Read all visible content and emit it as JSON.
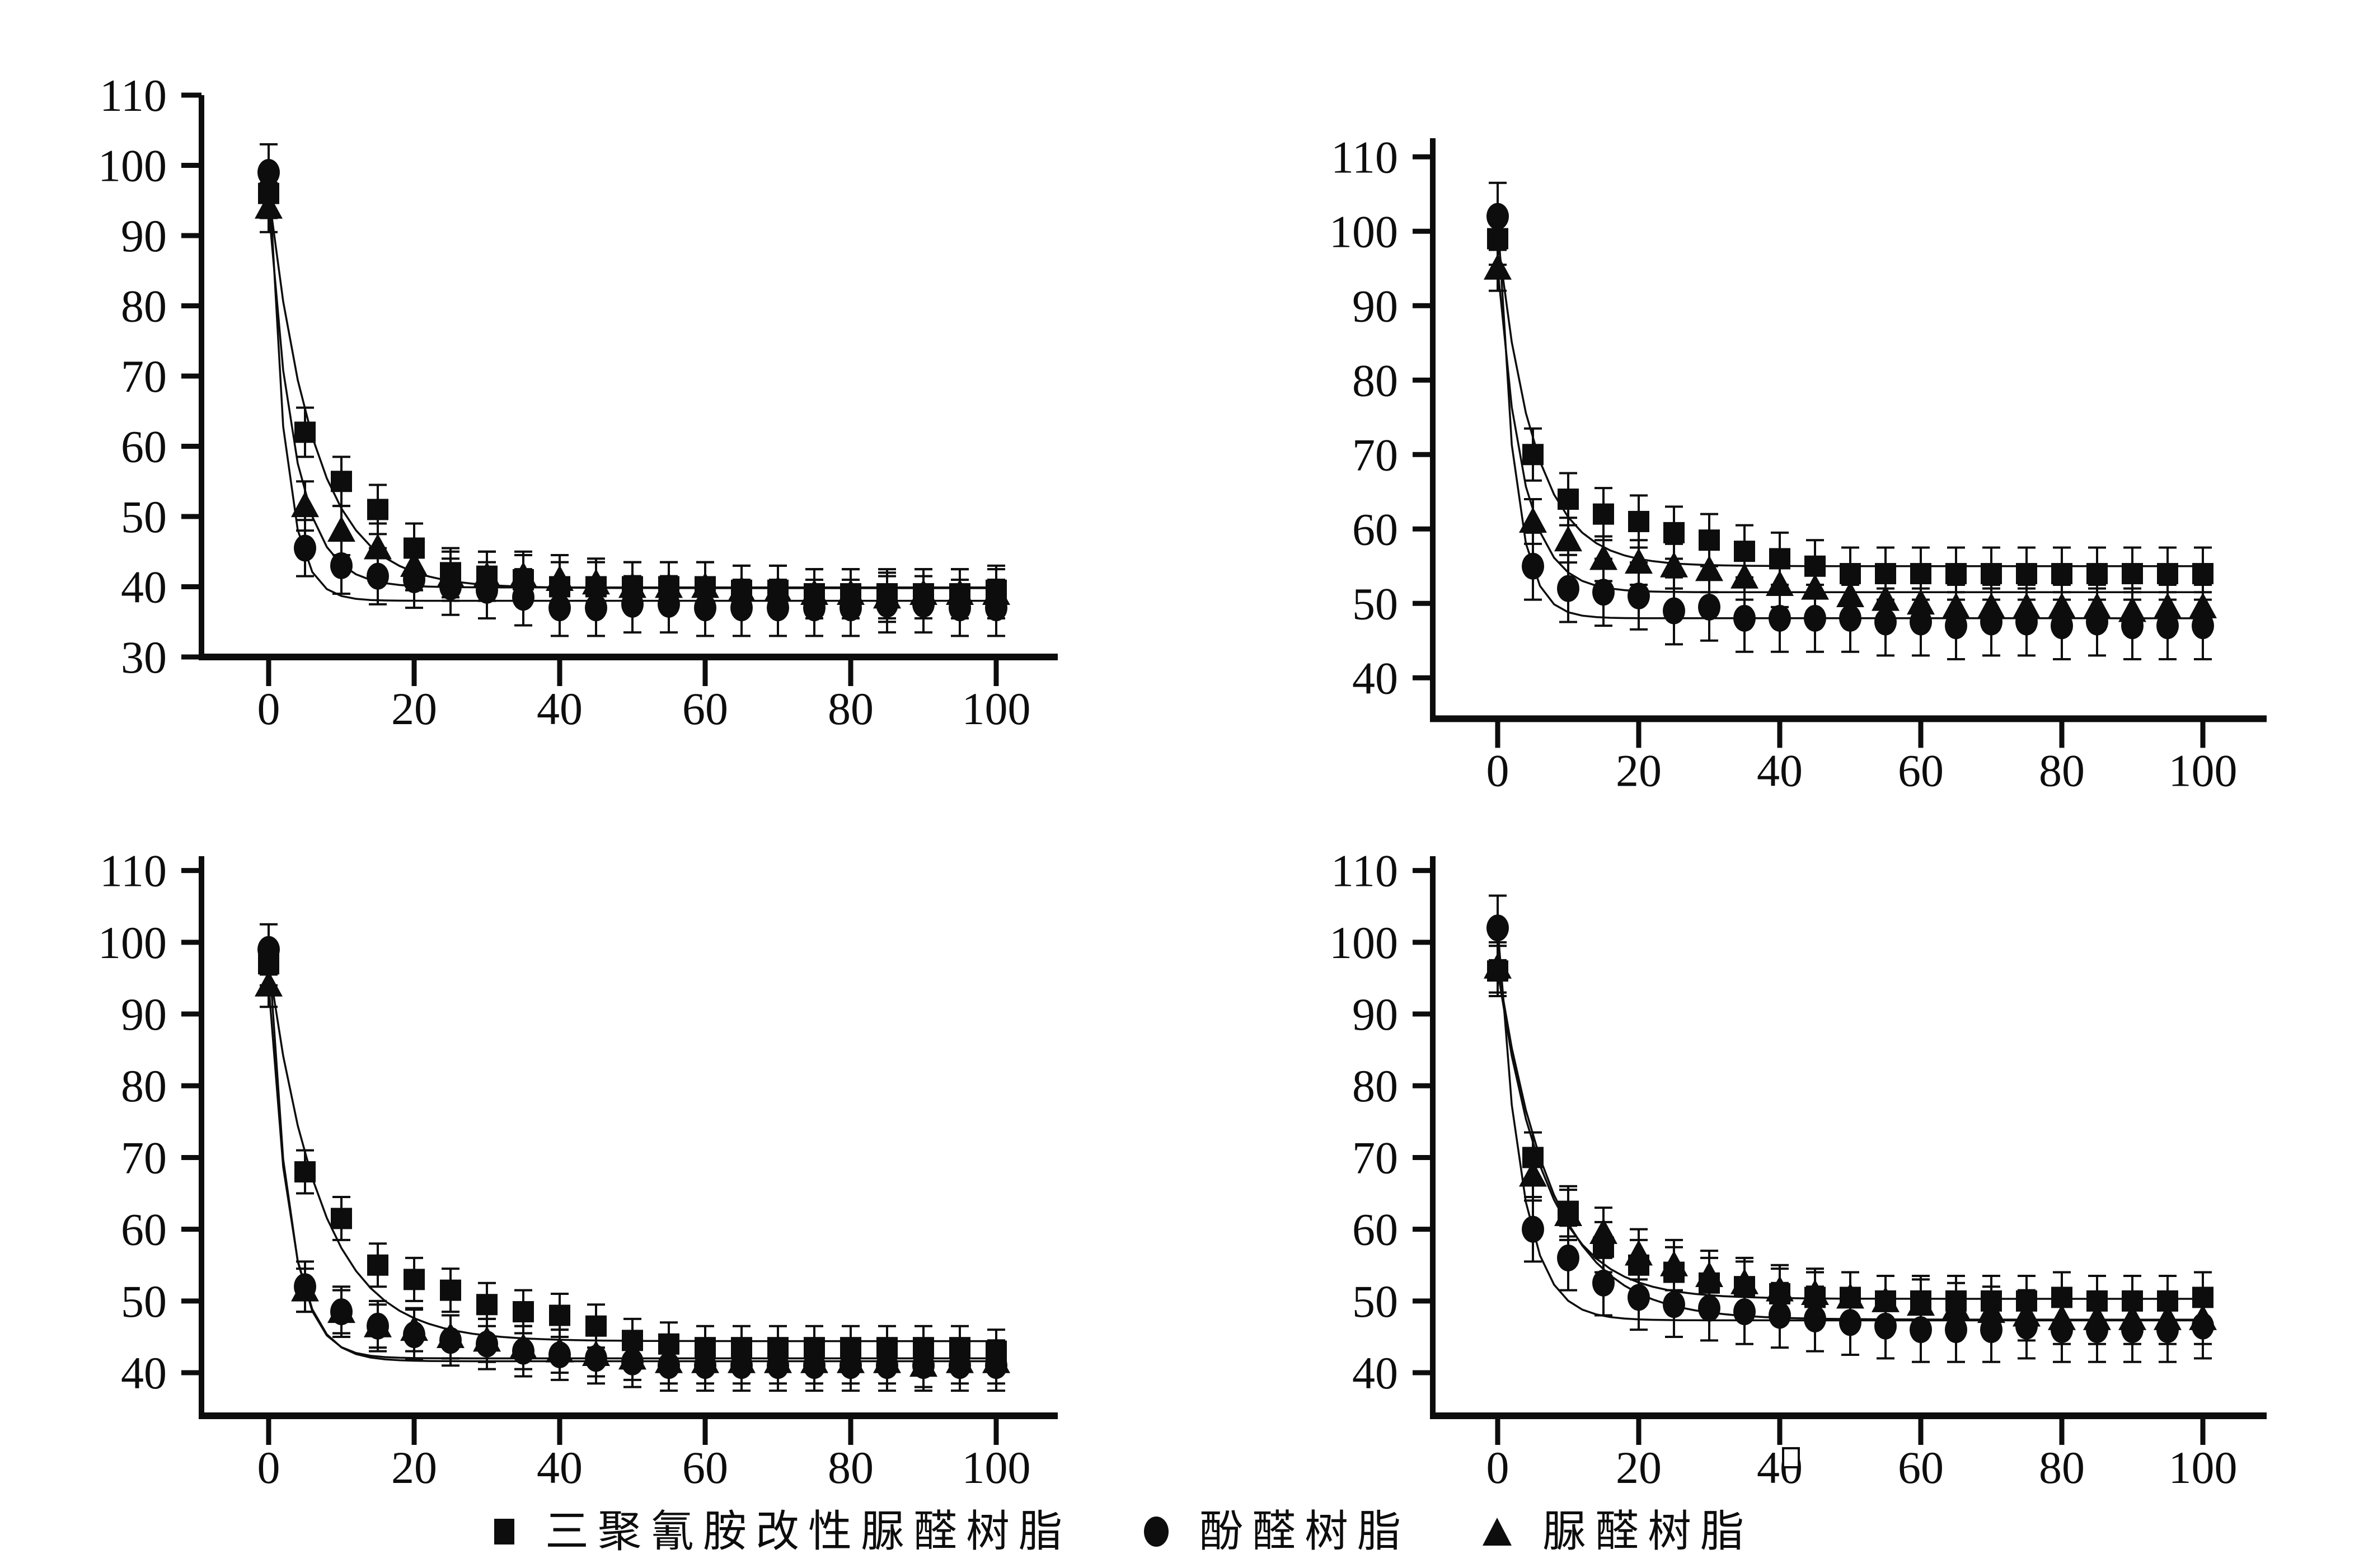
{
  "page": {
    "background": "#ffffff",
    "ink_color": "#0d0d0d"
  },
  "legend": {
    "items": [
      {
        "marker": "square",
        "icon": "square-marker-icon",
        "label": "三聚氰胺改性脲醛树脂"
      },
      {
        "marker": "circle",
        "icon": "circle-marker-icon",
        "label": "酚醛树脂"
      },
      {
        "marker": "triangle",
        "icon": "triangle-marker-icon",
        "label": "脲醛树脂"
      }
    ]
  },
  "chart_data": [
    {
      "id": "top-left",
      "type": "scatter",
      "title": "",
      "xlabel": "",
      "ylabel": "",
      "x": [
        0,
        5,
        10,
        15,
        20,
        25,
        30,
        35,
        40,
        45,
        50,
        55,
        60,
        65,
        70,
        75,
        80,
        85,
        90,
        95,
        100
      ],
      "xticks": [
        0,
        20,
        40,
        60,
        80,
        100
      ],
      "yticks": [
        30,
        40,
        50,
        60,
        70,
        80,
        90,
        100,
        110
      ],
      "ylim": [
        30,
        110
      ],
      "xlim": [
        0,
        100
      ],
      "grid": false,
      "series": [
        {
          "name": "三聚氰胺改性脲醛树脂",
          "marker": "square",
          "err": 3.5,
          "fit": {
            "y0": 96,
            "plateau": 39.8,
            "k": 0.16
          },
          "values": [
            96,
            62,
            55,
            51,
            45.5,
            42,
            41.5,
            41,
            40,
            40,
            40,
            40,
            40,
            39.5,
            39.5,
            39,
            39,
            39,
            39,
            39,
            39.5
          ]
        },
        {
          "name": "酚醛树脂",
          "marker": "circle",
          "err": 4,
          "fit": {
            "y0": 99,
            "plateau": 38,
            "k": 0.45
          },
          "values": [
            99,
            45.5,
            43,
            41.5,
            41,
            40,
            39.5,
            38.5,
            37,
            37,
            37.5,
            37.5,
            37,
            37,
            37,
            37,
            37,
            37.5,
            37.5,
            37,
            37
          ]
        },
        {
          "name": "脲醛树脂",
          "marker": "triangle",
          "err": 3.5,
          "fit": {
            "y0": 94,
            "plateau": 39.9,
            "k": 0.28
          },
          "values": [
            94,
            51.5,
            48,
            45.5,
            43,
            41.5,
            41.5,
            41.5,
            41,
            40.5,
            40,
            40,
            40,
            39.5,
            39.5,
            39,
            39,
            38.5,
            39,
            39,
            39
          ]
        }
      ]
    },
    {
      "id": "top-right",
      "type": "scatter",
      "title": "",
      "xlabel": "",
      "ylabel": "",
      "x": [
        0,
        5,
        10,
        15,
        20,
        25,
        30,
        35,
        40,
        45,
        50,
        55,
        60,
        65,
        70,
        75,
        80,
        85,
        90,
        95,
        100
      ],
      "xticks": [
        0,
        20,
        40,
        60,
        80,
        100
      ],
      "yticks": [
        40,
        50,
        60,
        70,
        80,
        90,
        100,
        110
      ],
      "ylim": [
        34.5,
        112.5
      ],
      "xlim": [
        0,
        100
      ],
      "grid": false,
      "series": [
        {
          "name": "三聚氰胺改性脲醛树脂",
          "marker": "square",
          "err": 3.5,
          "fit": {
            "y0": 99,
            "plateau": 55,
            "k": 0.19
          },
          "values": [
            99,
            70,
            64,
            62,
            61,
            59.5,
            58.5,
            57,
            56,
            55,
            54,
            54,
            54,
            54,
            54,
            54,
            54,
            54,
            54,
            54,
            54
          ]
        },
        {
          "name": "酚醛树脂",
          "marker": "circle",
          "err": 4.5,
          "fit": {
            "y0": 102,
            "plateau": 48,
            "k": 0.42
          },
          "values": [
            102,
            55,
            52,
            51.5,
            51,
            49,
            49.5,
            48,
            48,
            48,
            48,
            47.5,
            47.5,
            47,
            47.5,
            47.5,
            47,
            47.5,
            47,
            47,
            47
          ]
        },
        {
          "name": "脲醛树脂",
          "marker": "triangle",
          "err": 3,
          "fit": {
            "y0": 95,
            "plateau": 51.5,
            "k": 0.28
          },
          "values": [
            95,
            61,
            58.5,
            56,
            55.5,
            55,
            54.5,
            53.5,
            52.5,
            52,
            51,
            50.5,
            50,
            49.5,
            49.5,
            49.5,
            49.5,
            49.5,
            49,
            49.5,
            49.5
          ]
        }
      ]
    },
    {
      "id": "bottom-left",
      "type": "scatter",
      "title": "",
      "xlabel": "",
      "ylabel": "",
      "x": [
        0,
        5,
        10,
        15,
        20,
        25,
        30,
        35,
        40,
        45,
        50,
        55,
        60,
        65,
        70,
        75,
        80,
        85,
        90,
        95,
        100
      ],
      "xticks": [
        0,
        20,
        40,
        60,
        80,
        100
      ],
      "yticks": [
        40,
        50,
        60,
        70,
        80,
        90,
        100,
        110
      ],
      "ylim": [
        34,
        112
      ],
      "xlim": [
        0,
        100
      ],
      "grid": false,
      "series": [
        {
          "name": "三聚氰胺改性脲醛树脂",
          "marker": "square",
          "err": 3,
          "fit": {
            "y0": 97,
            "plateau": 44.4,
            "k": 0.14
          },
          "values": [
            97,
            68,
            61.5,
            55,
            53,
            51.5,
            49.5,
            48.5,
            48,
            46.5,
            44.5,
            44,
            43.5,
            43.5,
            43.5,
            43.5,
            43.5,
            43.5,
            43.5,
            43.5,
            43
          ]
        },
        {
          "name": "酚醛树脂",
          "marker": "circle",
          "err": 3.5,
          "fit": {
            "y0": 99,
            "plateau": 42,
            "k": 0.36
          },
          "values": [
            99,
            52,
            48.5,
            46.5,
            45.3,
            44.5,
            44,
            43,
            42.5,
            42,
            41.5,
            41,
            41,
            41,
            41,
            41,
            41,
            41,
            41,
            41,
            41
          ]
        },
        {
          "name": "脲醛树脂",
          "marker": "triangle",
          "err": 3,
          "fit": {
            "y0": 94,
            "plateau": 41.6,
            "k": 0.33
          },
          "values": [
            94,
            51.5,
            48.5,
            46.5,
            46,
            45,
            44.5,
            43.5,
            43,
            42.5,
            42,
            41.5,
            41.5,
            41.5,
            41.5,
            41.5,
            41.5,
            41.5,
            41,
            41.5,
            41.5
          ]
        }
      ]
    },
    {
      "id": "bottom-right",
      "type": "scatter",
      "title": "",
      "xlabel": "",
      "ylabel": "",
      "x": [
        0,
        5,
        10,
        15,
        20,
        25,
        30,
        35,
        40,
        45,
        50,
        55,
        60,
        65,
        70,
        75,
        80,
        85,
        90,
        95,
        100
      ],
      "xticks": [
        0,
        20,
        40,
        60,
        80,
        100
      ],
      "yticks": [
        40,
        50,
        60,
        70,
        80,
        90,
        100,
        110
      ],
      "ylim": [
        34,
        112
      ],
      "xlim": [
        0,
        100
      ],
      "grid": false,
      "x40_label_artifact": true,
      "series": [
        {
          "name": "三聚氰胺改性脲醛树脂",
          "marker": "square",
          "err": 3.5,
          "fit": {
            "y0": 96,
            "plateau": 50.3,
            "k": 0.15
          },
          "values": [
            96,
            70,
            62.5,
            57.5,
            55,
            54,
            52.5,
            52,
            51,
            50.5,
            50.5,
            50,
            50,
            50,
            50,
            50,
            50.5,
            50,
            50,
            50,
            50.5
          ]
        },
        {
          "name": "酚醛树脂",
          "marker": "circle",
          "err": 4.5,
          "fit": {
            "y0": 102,
            "plateau": 47.3,
            "k": 0.3
          },
          "values": [
            102,
            60,
            56,
            52.5,
            50.5,
            49.5,
            49,
            48.5,
            48,
            47.5,
            47,
            46.5,
            46,
            46,
            46,
            46.5,
            46,
            46,
            46,
            46,
            46.5
          ]
        },
        {
          "name": "脲醛树脂",
          "marker": "triangle",
          "err": 3.5,
          "fit": {
            "y0": 96.5,
            "plateau": 47.4,
            "k": 0.13
          },
          "values": [
            96.5,
            67.5,
            62,
            59.5,
            56.5,
            55,
            53.5,
            52.5,
            51.5,
            51,
            50.5,
            50,
            49.5,
            49,
            48.5,
            48,
            47.5,
            47.5,
            47.5,
            47.5,
            47.5
          ]
        }
      ]
    }
  ]
}
